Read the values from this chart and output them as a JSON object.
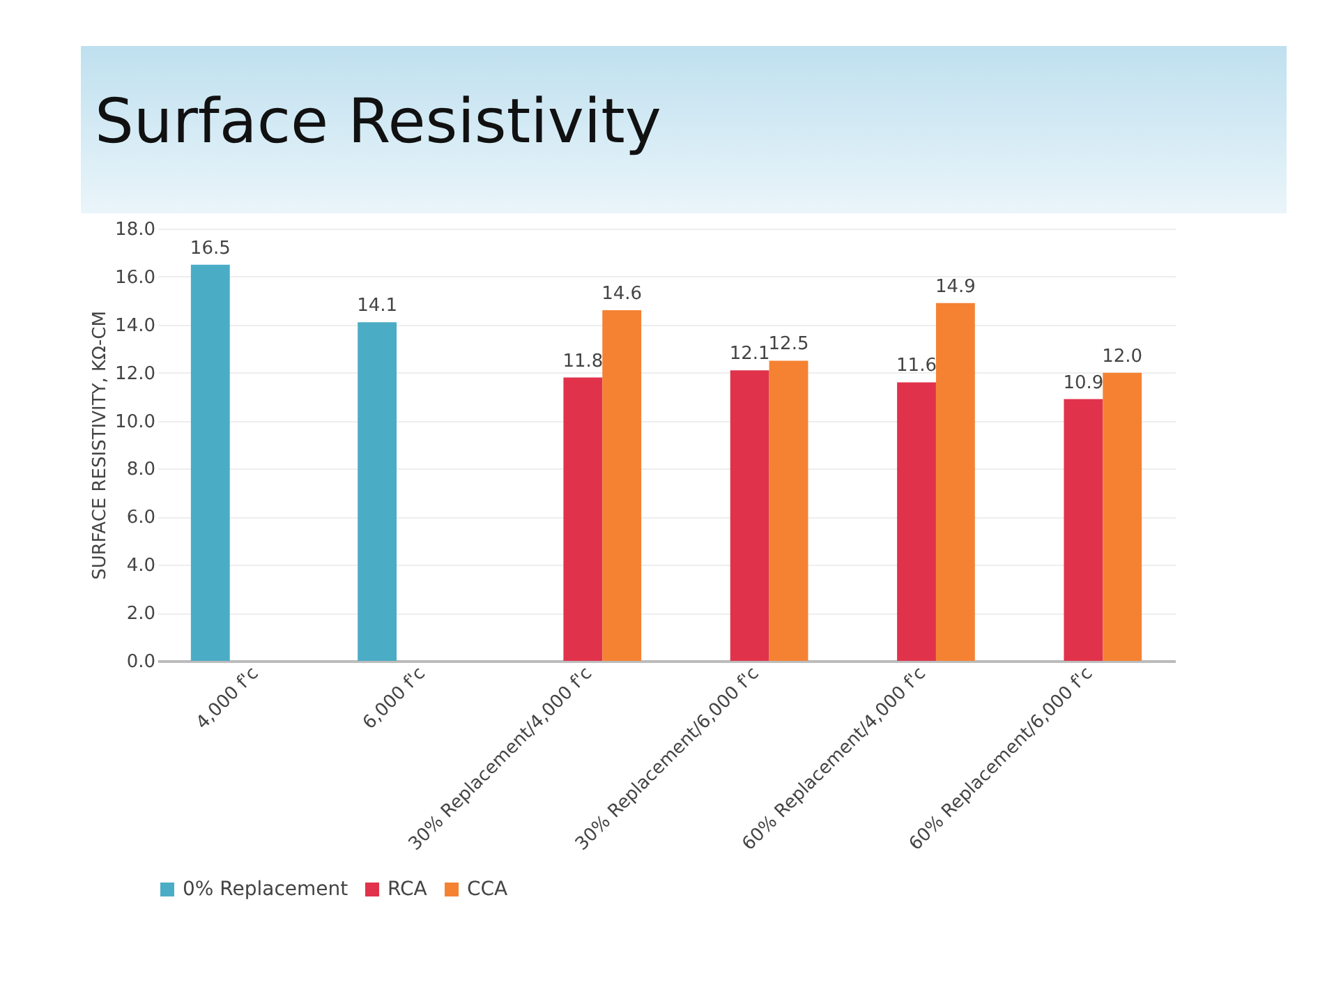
{
  "chart_data": {
    "type": "bar",
    "title": "Surface Resistivity",
    "ylabel": "SURFACE RESISTIVITY, KΩ-CM",
    "categories": [
      "4,000 f'c",
      "6,000 f'c",
      "30% Replacement/4,000 f'c",
      "30% Replacement/6,000 f'c",
      "60% Replacement/4,000 f'c",
      "60% Replacement/6,000 f'c"
    ],
    "series": [
      {
        "name": "0% Replacement",
        "color": "#4bacc6",
        "values": [
          16.5,
          14.1,
          null,
          null,
          null,
          null
        ],
        "value_labels": [
          "16.5",
          "14.1",
          null,
          null,
          null,
          null
        ]
      },
      {
        "name": "RCA",
        "color": "#e0334b",
        "values": [
          null,
          null,
          11.8,
          12.1,
          11.6,
          10.9
        ],
        "value_labels": [
          null,
          null,
          "11.8",
          "12.1",
          "11.6",
          "10.9"
        ]
      },
      {
        "name": "CCA",
        "color": "#f58233",
        "values": [
          null,
          null,
          14.6,
          12.5,
          14.9,
          12.0
        ],
        "value_labels": [
          null,
          null,
          "14.6",
          "12.5",
          "14.9",
          "12.0"
        ]
      }
    ],
    "ylim": [
      0,
      18
    ],
    "yticks": [
      {
        "value": 0,
        "label": "0.0"
      },
      {
        "value": 2,
        "label": "2.0"
      },
      {
        "value": 4,
        "label": "4.0"
      },
      {
        "value": 6,
        "label": "6.0"
      },
      {
        "value": 8,
        "label": "8.0"
      },
      {
        "value": 10,
        "label": "10.0"
      },
      {
        "value": 12,
        "label": "12.0"
      },
      {
        "value": 14,
        "label": "14.0"
      },
      {
        "value": 16,
        "label": "16.0"
      },
      {
        "value": 18,
        "label": "18.0"
      }
    ],
    "grid": "y",
    "legend": "bottom"
  }
}
